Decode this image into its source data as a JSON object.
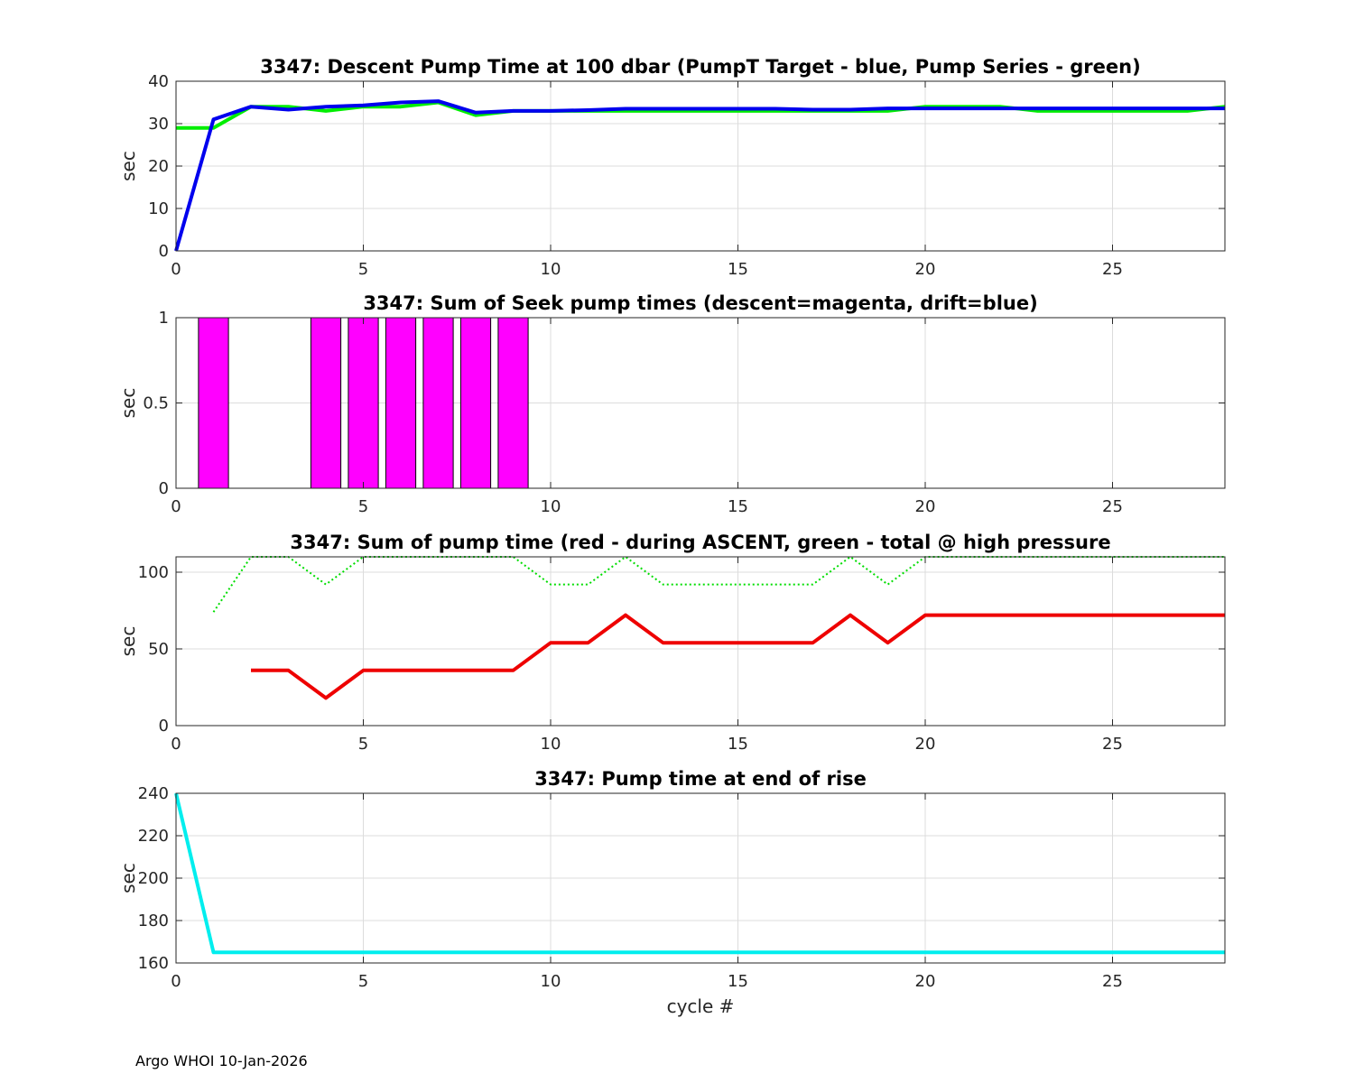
{
  "footer": "Argo WHOI 10-Jan-2026",
  "chart_data": [
    {
      "type": "line",
      "title": "3347: Descent Pump Time at 100 dbar (PumpT Target - blue, Pump Series - green)",
      "xlabel": "",
      "ylabel": "sec",
      "xlim": [
        0,
        28
      ],
      "ylim": [
        0,
        40
      ],
      "xticks": [
        0,
        5,
        10,
        15,
        20,
        25
      ],
      "yticks": [
        0,
        10,
        20,
        30,
        40
      ],
      "grid": true,
      "series": [
        {
          "color": "#00ee00",
          "width": 4,
          "dash": "",
          "x": [
            0,
            1,
            2,
            3,
            4,
            5,
            6,
            7,
            8,
            9,
            10,
            11,
            12,
            13,
            14,
            15,
            16,
            17,
            18,
            19,
            20,
            21,
            22,
            23,
            24,
            25,
            26,
            27,
            28
          ],
          "y": [
            29,
            29,
            34,
            34,
            33,
            34,
            34,
            35,
            32,
            33,
            33,
            33,
            33,
            33,
            33,
            33,
            33,
            33,
            33,
            33,
            34,
            34,
            34,
            33,
            33,
            33,
            33,
            33,
            34
          ]
        },
        {
          "color": "#0000ee",
          "width": 4,
          "dash": "",
          "x": [
            0,
            1,
            2,
            3,
            4,
            5,
            6,
            7,
            8,
            9,
            10,
            11,
            12,
            13,
            14,
            15,
            16,
            17,
            18,
            19,
            20,
            21,
            22,
            23,
            24,
            25,
            26,
            27,
            28
          ],
          "y": [
            0,
            31,
            34,
            33.3,
            34,
            34.3,
            35,
            35.3,
            32.6,
            33,
            33,
            33.2,
            33.5,
            33.5,
            33.5,
            33.5,
            33.5,
            33.3,
            33.3,
            33.6,
            33.6,
            33.6,
            33.6,
            33.6,
            33.6,
            33.6,
            33.6,
            33.6,
            33.6
          ]
        }
      ]
    },
    {
      "type": "bar",
      "title": "3347: Sum of Seek pump times (descent=magenta, drift=blue)",
      "xlabel": "",
      "ylabel": "sec",
      "xlim": [
        0,
        28
      ],
      "ylim": [
        0,
        1
      ],
      "xticks": [
        0,
        5,
        10,
        15,
        20,
        25
      ],
      "yticks": [
        0,
        0.5,
        1
      ],
      "grid": true,
      "bar_width": 0.8,
      "bars": [
        {
          "x": 1,
          "value": 1,
          "color": "#ff00ff"
        },
        {
          "x": 4,
          "value": 1,
          "color": "#ff00ff"
        },
        {
          "x": 5,
          "value": 1,
          "color": "#ff00ff"
        },
        {
          "x": 6,
          "value": 1,
          "color": "#ff00ff"
        },
        {
          "x": 7,
          "value": 1,
          "color": "#ff00ff"
        },
        {
          "x": 8,
          "value": 1,
          "color": "#ff00ff"
        },
        {
          "x": 9,
          "value": 1,
          "color": "#ff00ff"
        }
      ]
    },
    {
      "type": "line",
      "title": "3347: Sum of pump time (red - during ASCENT, green - total @ high pressure",
      "xlabel": "",
      "ylabel": "sec",
      "xlim": [
        0,
        28
      ],
      "ylim": [
        0,
        110
      ],
      "xticks": [
        0,
        5,
        10,
        15,
        20,
        25
      ],
      "yticks": [
        0,
        50,
        100
      ],
      "grid": true,
      "series": [
        {
          "color": "#00dd00",
          "width": 2,
          "dash": "2,3",
          "x": [
            1,
            2,
            3,
            4,
            5,
            6,
            7,
            8,
            9,
            10,
            11,
            12,
            13,
            14,
            15,
            16,
            17,
            18,
            19,
            20,
            21,
            22,
            23,
            24,
            25,
            26,
            27,
            28
          ],
          "y": [
            74,
            110,
            110,
            92,
            110,
            110,
            110,
            110,
            110,
            92,
            92,
            110,
            92,
            92,
            92,
            92,
            92,
            110,
            92,
            110,
            110,
            110,
            110,
            110,
            110,
            110,
            110,
            110
          ]
        },
        {
          "color": "#ee0000",
          "width": 4,
          "dash": "",
          "x": [
            2,
            3,
            4,
            5,
            6,
            7,
            8,
            9,
            10,
            11,
            12,
            13,
            14,
            15,
            16,
            17,
            18,
            19,
            20,
            21,
            22,
            23,
            24,
            25,
            26,
            27,
            28
          ],
          "y": [
            36,
            36,
            18,
            36,
            36,
            36,
            36,
            36,
            54,
            54,
            72,
            54,
            54,
            54,
            54,
            54,
            72,
            54,
            72,
            72,
            72,
            72,
            72,
            72,
            72,
            72,
            72
          ]
        }
      ]
    },
    {
      "type": "line",
      "title": "3347: Pump time at end of rise",
      "xlabel": "cycle #",
      "ylabel": "sec",
      "xlim": [
        0,
        28
      ],
      "ylim": [
        160,
        240
      ],
      "xticks": [
        0,
        5,
        10,
        15,
        20,
        25
      ],
      "yticks": [
        160,
        180,
        200,
        220,
        240
      ],
      "grid": true,
      "series": [
        {
          "color": "#00eeee",
          "width": 4,
          "dash": "",
          "x": [
            0,
            1,
            28
          ],
          "y": [
            240,
            165,
            165
          ]
        }
      ]
    }
  ]
}
